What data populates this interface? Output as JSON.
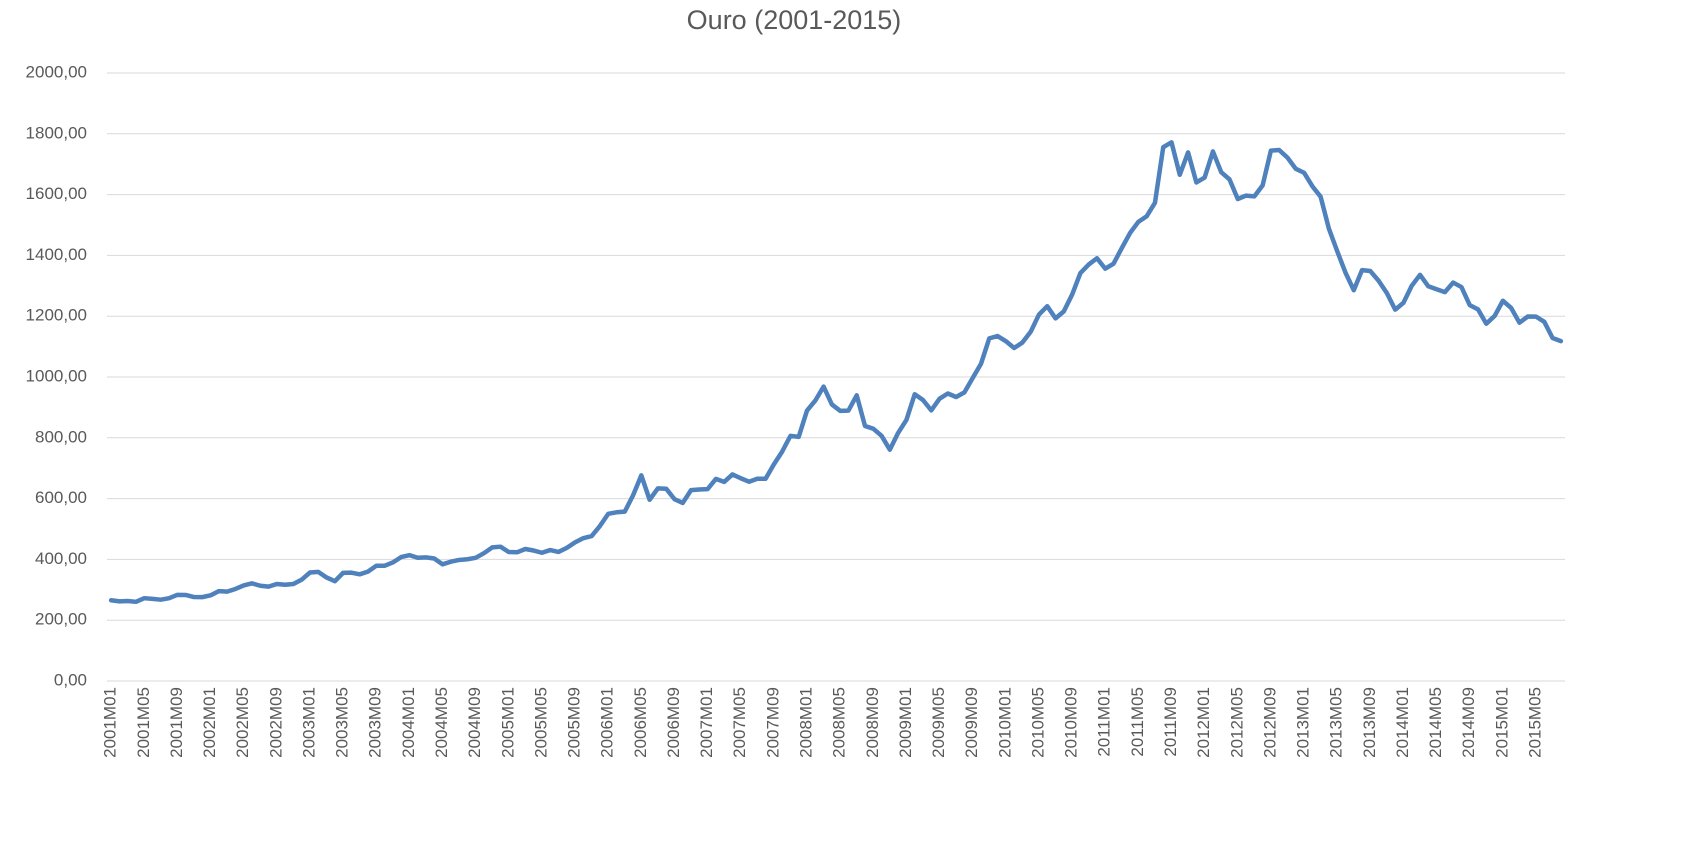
{
  "chart_data": {
    "type": "line",
    "title": "Ouro (2001-2015)",
    "categories": [
      "2001M01",
      null,
      null,
      null,
      "2001M05",
      null,
      null,
      null,
      "2001M09",
      null,
      null,
      null,
      "2002M01",
      null,
      null,
      null,
      "2002M05",
      null,
      null,
      null,
      "2002M09",
      null,
      null,
      null,
      "2003M01",
      null,
      null,
      null,
      "2003M05",
      null,
      null,
      null,
      "2003M09",
      null,
      null,
      null,
      "2004M01",
      null,
      null,
      null,
      "2004M05",
      null,
      null,
      null,
      "2004M09",
      null,
      null,
      null,
      "2005M01",
      null,
      null,
      null,
      "2005M05",
      null,
      null,
      null,
      "2005M09",
      null,
      null,
      null,
      "2006M01",
      null,
      null,
      null,
      "2006M05",
      null,
      null,
      null,
      "2006M09",
      null,
      null,
      null,
      "2007M01",
      null,
      null,
      null,
      "2007M05",
      null,
      null,
      null,
      "2007M09",
      null,
      null,
      null,
      "2008M01",
      null,
      null,
      null,
      "2008M05",
      null,
      null,
      null,
      "2008M09",
      null,
      null,
      null,
      "2009M01",
      null,
      null,
      null,
      "2009M05",
      null,
      null,
      null,
      "2009M09",
      null,
      null,
      null,
      "2010M01",
      null,
      null,
      null,
      "2010M05",
      null,
      null,
      null,
      "2010M09",
      null,
      null,
      null,
      "2011M01",
      null,
      null,
      null,
      "2011M05",
      null,
      null,
      null,
      "2011M09",
      null,
      null,
      null,
      "2012M01",
      null,
      null,
      null,
      "2012M05",
      null,
      null,
      null,
      "2012M09",
      null,
      null,
      null,
      "2013M01",
      null,
      null,
      null,
      "2013M05",
      null,
      null,
      null,
      "2013M09",
      null,
      null,
      null,
      "2014M01",
      null,
      null,
      null,
      "2014M05",
      null,
      null,
      null,
      "2014M09",
      null,
      null,
      null,
      "2015M01",
      null,
      null,
      null,
      "2015M05",
      null,
      null,
      null
    ],
    "values": [
      265.5,
      261.9,
      263.0,
      260.5,
      272.4,
      270.2,
      267.5,
      272.4,
      283.4,
      283.1,
      276.2,
      275.9,
      281.7,
      295.5,
      294.0,
      302.7,
      314.5,
      321.2,
      313.3,
      310.3,
      319.2,
      316.6,
      319.2,
      333.4,
      356.9,
      359.0,
      340.6,
      328.2,
      355.7,
      356.4,
      351.0,
      359.8,
      378.9,
      378.9,
      389.9,
      407.6,
      414.0,
      405.3,
      406.7,
      403.0,
      383.8,
      392.4,
      398.1,
      400.5,
      405.3,
      420.5,
      439.4,
      441.8,
      424.2,
      423.4,
      434.2,
      429.2,
      421.9,
      430.7,
      424.5,
      437.9,
      456.0,
      469.9,
      476.7,
      509.8,
      549.9,
      555.0,
      557.1,
      610.6,
      676.5,
      596.2,
      633.8,
      632.6,
      598.2,
      585.8,
      627.8,
      629.8,
      631.2,
      664.8,
      654.9,
      679.4,
      666.9,
      655.5,
      665.3,
      665.4,
      712.7,
      754.6,
      806.3,
      803.2,
      889.6,
      922.3,
      968.4,
      909.7,
      888.7,
      889.5,
      939.8,
      839.0,
      829.9,
      806.6,
      760.9,
      816.1,
      858.7,
      943.2,
      924.3,
      890.2,
      928.7,
      945.7,
      934.2,
      949.4,
      996.6,
      1043.2,
      1127.0,
      1134.7,
      1117.9,
      1095.4,
      1113.3,
      1148.7,
      1205.4,
      1232.9,
      1192.9,
      1215.8,
      1270.9,
      1342.0,
      1369.9,
      1390.6,
      1356.4,
      1372.7,
      1424.0,
      1473.8,
      1510.4,
      1528.7,
      1572.8,
      1755.8,
      1771.9,
      1665.2,
      1738.9,
      1640.0,
      1656.1,
      1742.1,
      1673.8,
      1650.1,
      1585.5,
      1596.7,
      1594.3,
      1630.3,
      1744.8,
      1746.6,
      1721.6,
      1684.8,
      1671.9,
      1627.6,
      1593.1,
      1487.9,
      1414.0,
      1343.4,
      1285.5,
      1351.7,
      1348.6,
      1316.6,
      1275.9,
      1221.5,
      1244.3,
      1300.0,
      1336.1,
      1298.5,
      1288.7,
      1279.1,
      1310.6,
      1295.9,
      1236.6,
      1222.5,
      1175.3,
      1200.6,
      1250.8,
      1227.1,
      1178.6,
      1198.9,
      1198.6,
      1181.5,
      1128.3,
      1117.9
    ],
    "color": "#4f81bd",
    "ylim": [
      0,
      2000
    ],
    "yticks": [
      {
        "value": 0,
        "label": "0,00"
      },
      {
        "value": 200,
        "label": "200,00"
      },
      {
        "value": 400,
        "label": "400,00"
      },
      {
        "value": 600,
        "label": "600,00"
      },
      {
        "value": 800,
        "label": "800,00"
      },
      {
        "value": 1000,
        "label": "1000,00"
      },
      {
        "value": 1200,
        "label": "1200,00"
      },
      {
        "value": 1400,
        "label": "1400,00"
      },
      {
        "value": 1600,
        "label": "1600,00"
      },
      {
        "value": 1800,
        "label": "1800,00"
      },
      {
        "value": 2000,
        "label": "2000,00"
      }
    ],
    "grid": true
  }
}
